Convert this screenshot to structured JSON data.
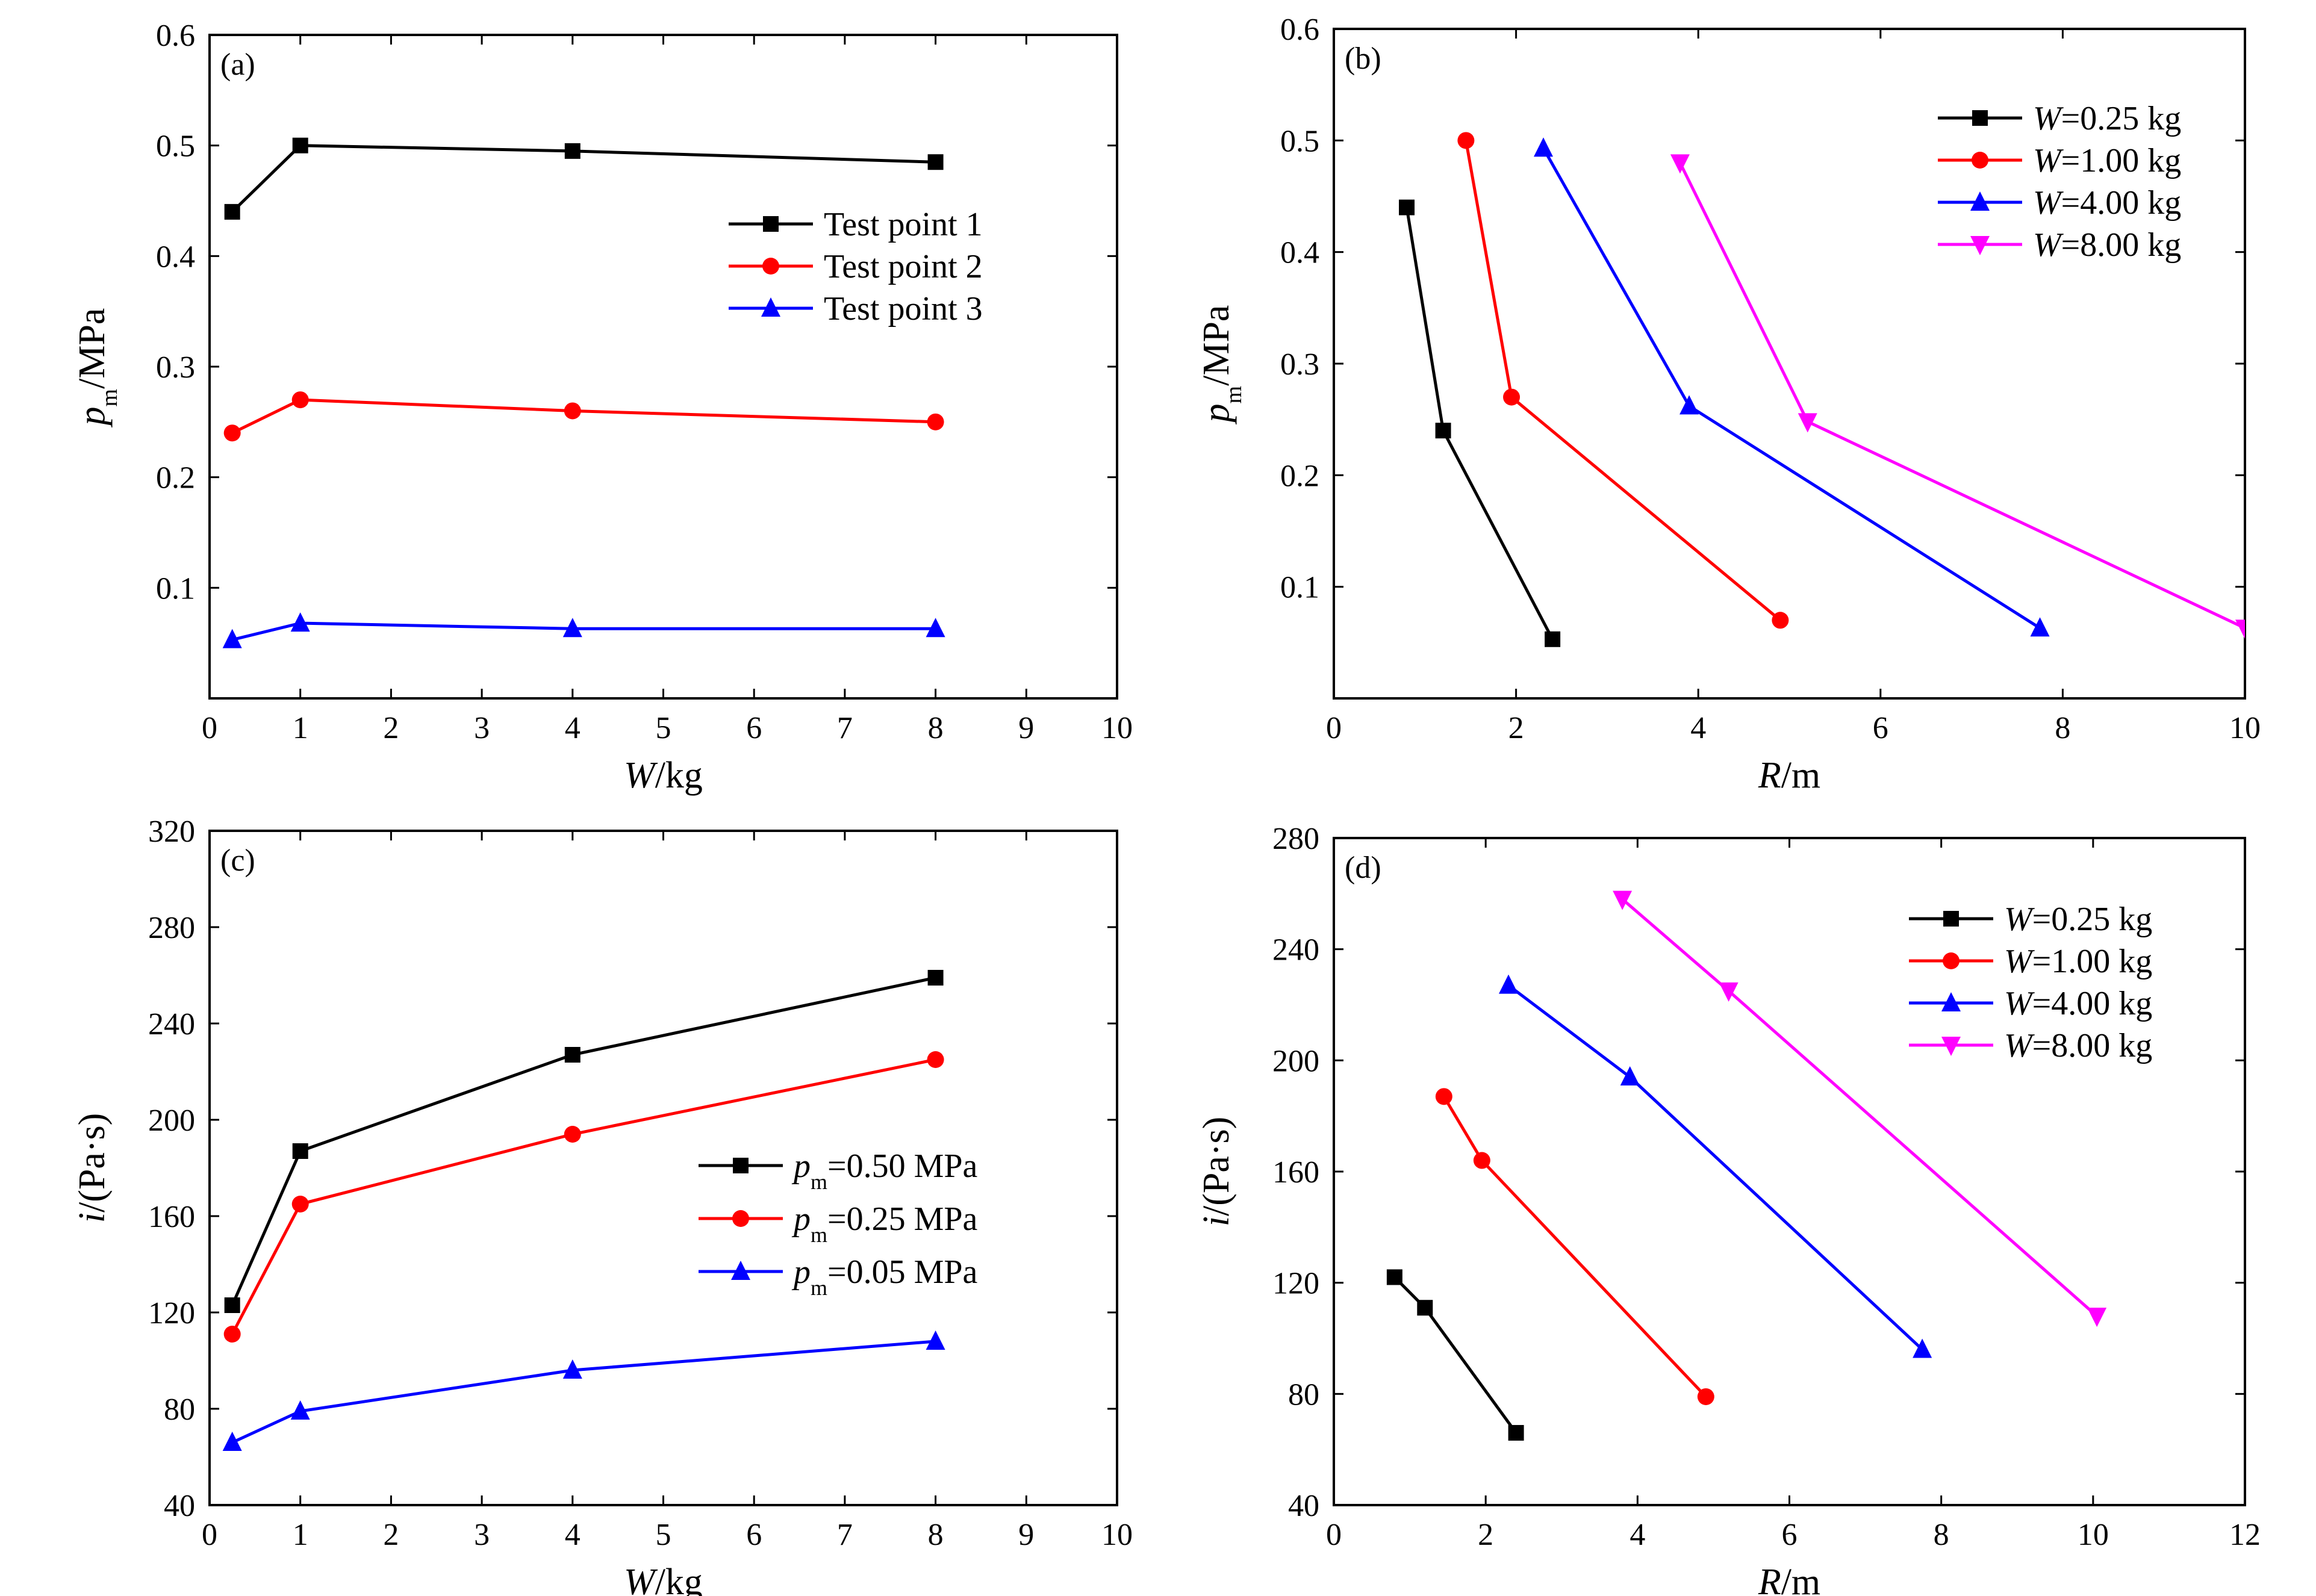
{
  "chart_data": [
    {
      "panel": "(a)",
      "type": "line",
      "xlabel": {
        "main": "W",
        "rest": "/kg"
      },
      "ylabel": {
        "main": "p",
        "sub": "m",
        "rest": "/MPa"
      },
      "xlim": [
        0,
        10
      ],
      "ylim": [
        0,
        0.6
      ],
      "xticks": [
        0,
        1,
        2,
        3,
        4,
        5,
        6,
        7,
        8,
        9,
        10
      ],
      "yticks": [
        0.1,
        0.2,
        0.3,
        0.4,
        0.5,
        0.6
      ],
      "xtick_labels": [
        "0",
        "1",
        "2",
        "3",
        "4",
        "5",
        "6",
        "7",
        "8",
        "9",
        "10"
      ],
      "ytick_labels": [
        "0.1",
        "0.2",
        "0.3",
        "0.4",
        "0.5",
        "0.6"
      ],
      "legend_position": "center-right",
      "series": [
        {
          "name": "Test point 1",
          "color": "#000000",
          "marker": "square",
          "x": [
            0.25,
            1,
            4,
            8
          ],
          "y": [
            0.44,
            0.5,
            0.495,
            0.485
          ]
        },
        {
          "name": "Test point 2",
          "color": "#ff0000",
          "marker": "circle",
          "x": [
            0.25,
            1,
            4,
            8
          ],
          "y": [
            0.24,
            0.27,
            0.26,
            0.25
          ]
        },
        {
          "name": "Test point 3",
          "color": "#0000ff",
          "marker": "triangle-up",
          "x": [
            0.25,
            1,
            4,
            8
          ],
          "y": [
            0.053,
            0.068,
            0.063,
            0.063
          ]
        }
      ]
    },
    {
      "panel": "(b)",
      "type": "line",
      "xlabel": {
        "main": "R",
        "rest": "/m"
      },
      "ylabel": {
        "main": "p",
        "sub": "m",
        "rest": "/MPa"
      },
      "xlim": [
        0,
        10
      ],
      "ylim": [
        0,
        0.6
      ],
      "xticks": [
        0,
        2,
        4,
        6,
        8,
        10
      ],
      "yticks": [
        0.1,
        0.2,
        0.3,
        0.4,
        0.5,
        0.6
      ],
      "xtick_labels": [
        "0",
        "2",
        "4",
        "6",
        "8",
        "10"
      ],
      "ytick_labels": [
        "0.1",
        "0.2",
        "0.3",
        "0.4",
        "0.5",
        "0.6"
      ],
      "legend_position": "top-right",
      "series": [
        {
          "name": "W=0.25 kg",
          "name_main": "W",
          "name_rest": "=0.25 kg",
          "color": "#000000",
          "marker": "square",
          "x": [
            0.8,
            1.2,
            2.4
          ],
          "y": [
            0.44,
            0.24,
            0.053
          ]
        },
        {
          "name": "W=1.00 kg",
          "name_main": "W",
          "name_rest": "=1.00 kg",
          "color": "#ff0000",
          "marker": "circle",
          "x": [
            1.45,
            1.95,
            4.9
          ],
          "y": [
            0.5,
            0.27,
            0.07
          ]
        },
        {
          "name": "W=4.00 kg",
          "name_main": "W",
          "name_rest": "=4.00 kg",
          "color": "#0000ff",
          "marker": "triangle-up",
          "x": [
            2.3,
            3.9,
            7.75
          ],
          "y": [
            0.493,
            0.262,
            0.063
          ]
        },
        {
          "name": "W=8.00 kg",
          "name_main": "W",
          "name_rest": "=8.00 kg",
          "color": "#ff00ff",
          "marker": "triangle-down",
          "x": [
            3.8,
            5.2,
            10
          ],
          "y": [
            0.48,
            0.248,
            0.063
          ]
        }
      ]
    },
    {
      "panel": "(c)",
      "type": "line",
      "xlabel": {
        "main": "W",
        "rest": "/kg"
      },
      "ylabel": {
        "main": "i",
        "rest": "/(Pa·s)"
      },
      "xlim": [
        0,
        10
      ],
      "ylim": [
        40,
        320
      ],
      "xticks": [
        0,
        1,
        2,
        3,
        4,
        5,
        6,
        7,
        8,
        9,
        10
      ],
      "yticks": [
        40,
        80,
        120,
        160,
        200,
        240,
        280,
        320
      ],
      "xtick_labels": [
        "0",
        "1",
        "2",
        "3",
        "4",
        "5",
        "6",
        "7",
        "8",
        "9",
        "10"
      ],
      "ytick_labels": [
        "40",
        "80",
        "120",
        "160",
        "200",
        "240",
        "280",
        "320"
      ],
      "legend_position": "center-right",
      "series": [
        {
          "name": "pm=0.50 MPa",
          "name_main": "p",
          "name_sub": "m",
          "name_rest": "=0.50 MPa",
          "color": "#000000",
          "marker": "square",
          "x": [
            0.25,
            1,
            4,
            8
          ],
          "y": [
            123,
            187,
            227,
            259
          ]
        },
        {
          "name": "pm=0.25 MPa",
          "name_main": "p",
          "name_sub": "m",
          "name_rest": "=0.25 MPa",
          "color": "#ff0000",
          "marker": "circle",
          "x": [
            0.25,
            1,
            4,
            8
          ],
          "y": [
            111,
            165,
            194,
            225
          ]
        },
        {
          "name": "pm=0.05 MPa",
          "name_main": "p",
          "name_sub": "m",
          "name_rest": "=0.05 MPa",
          "color": "#0000ff",
          "marker": "triangle-up",
          "x": [
            0.25,
            1,
            4,
            8
          ],
          "y": [
            66,
            79,
            96,
            108
          ]
        }
      ]
    },
    {
      "panel": "(d)",
      "type": "line",
      "xlabel": {
        "main": "R",
        "rest": "/m"
      },
      "ylabel": {
        "main": "i",
        "rest": "/(Pa·s)"
      },
      "xlim": [
        0,
        12
      ],
      "ylim": [
        40,
        280
      ],
      "xticks": [
        0,
        2,
        4,
        6,
        8,
        10,
        12
      ],
      "yticks": [
        40,
        80,
        120,
        160,
        200,
        240,
        280
      ],
      "xtick_labels": [
        "0",
        "2",
        "4",
        "6",
        "8",
        "10",
        "12"
      ],
      "ytick_labels": [
        "40",
        "80",
        "120",
        "160",
        "200",
        "240",
        "280"
      ],
      "legend_position": "top-right",
      "series": [
        {
          "name": "W=0.25 kg",
          "name_main": "W",
          "name_rest": "=0.25 kg",
          "color": "#000000",
          "marker": "square",
          "x": [
            0.8,
            1.2,
            2.4
          ],
          "y": [
            122,
            111,
            66
          ]
        },
        {
          "name": "W=1.00 kg",
          "name_main": "W",
          "name_rest": "=1.00 kg",
          "color": "#ff0000",
          "marker": "circle",
          "x": [
            1.45,
            1.95,
            4.9
          ],
          "y": [
            187,
            164,
            79
          ]
        },
        {
          "name": "W=4.00 kg",
          "name_main": "W",
          "name_rest": "=4.00 kg",
          "color": "#0000ff",
          "marker": "triangle-up",
          "x": [
            2.3,
            3.9,
            7.75
          ],
          "y": [
            227,
            194,
            96
          ]
        },
        {
          "name": "W=8.00 kg",
          "name_main": "W",
          "name_rest": "=8.00 kg",
          "color": "#ff00ff",
          "marker": "triangle-down",
          "x": [
            3.8,
            5.2,
            10.05
          ],
          "y": [
            258,
            225,
            108
          ]
        }
      ]
    }
  ]
}
